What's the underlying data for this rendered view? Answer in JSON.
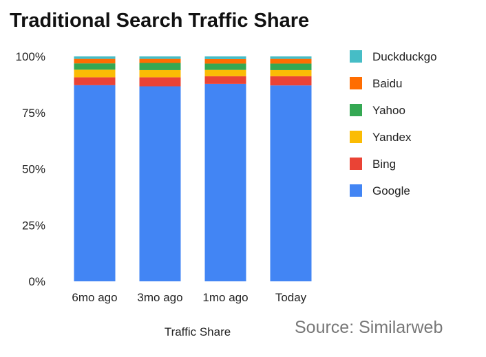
{
  "title": "Traditional Search Traffic Share",
  "source": "Source: Similarweb",
  "chart_data": {
    "type": "bar",
    "stacked": true,
    "title": "Traditional Search Traffic Share",
    "xlabel": "Traffic Share",
    "ylabel": "",
    "ylim": [
      0,
      100
    ],
    "yticks": [
      "0%",
      "25%",
      "50%",
      "75%",
      "100%"
    ],
    "categories": [
      "6mo ago",
      "3mo ago",
      "1mo ago",
      "Today"
    ],
    "legend_position": "right",
    "grid": false,
    "series": [
      {
        "name": "Google",
        "color": "#4285f4",
        "values": [
          87.2,
          86.7,
          87.8,
          87.1
        ]
      },
      {
        "name": "Bing",
        "color": "#ea4335",
        "values": [
          3.5,
          4.0,
          3.4,
          4.1
        ]
      },
      {
        "name": "Yandex",
        "color": "#fbbc04",
        "values": [
          3.4,
          3.2,
          2.8,
          2.7
        ]
      },
      {
        "name": "Yahoo",
        "color": "#34a853",
        "values": [
          2.8,
          3.2,
          2.8,
          2.9
        ]
      },
      {
        "name": "Baidu",
        "color": "#ff6d01",
        "values": [
          2.0,
          1.8,
          2.0,
          2.1
        ]
      },
      {
        "name": "Duckduckgo",
        "color": "#46bdc6",
        "values": [
          1.1,
          1.1,
          1.2,
          1.1
        ]
      }
    ]
  }
}
